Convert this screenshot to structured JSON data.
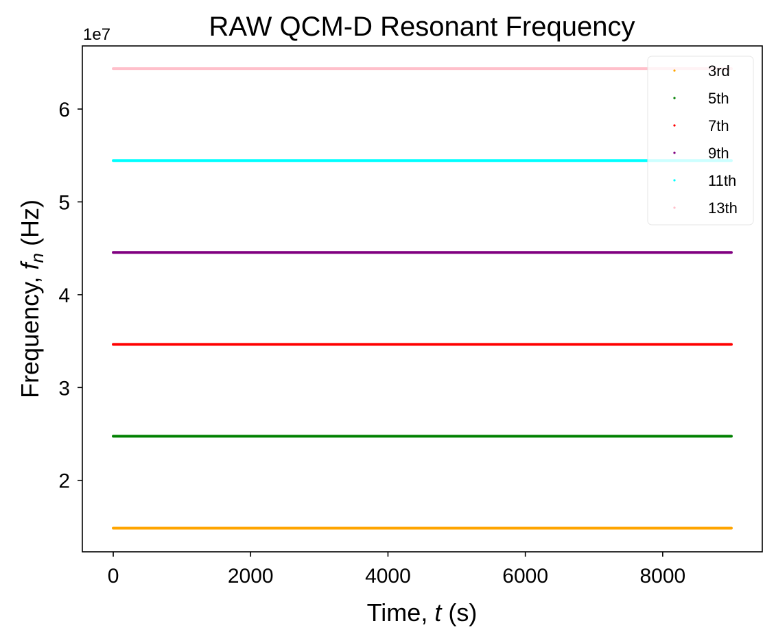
{
  "chart_data": {
    "type": "scatter",
    "title": "RAW QCM-D Resonant Frequency",
    "xlabel": {
      "prefix": "Time, ",
      "symbol": "t",
      "suffix": " (s)"
    },
    "ylabel": {
      "prefix": "Frequency, ",
      "symbol": "f",
      "sub": "n",
      "suffix": " (Hz)"
    },
    "y_offset_label": "1e7",
    "xlim": [
      -450,
      9450
    ],
    "ylim": [
      12300000.0,
      66800000.0
    ],
    "x_ticks": [
      0,
      2000,
      4000,
      6000,
      8000
    ],
    "x_tick_labels": [
      "0",
      "2000",
      "4000",
      "6000",
      "8000"
    ],
    "y_ticks": [
      20000000.0,
      30000000.0,
      40000000.0,
      50000000.0,
      60000000.0
    ],
    "y_tick_labels": [
      "2",
      "3",
      "4",
      "5",
      "6"
    ],
    "x_range": [
      0,
      9000
    ],
    "grid": false,
    "legend_position": "top-right",
    "series": [
      {
        "name": "3rd",
        "color": "#FFA500",
        "x": [
          0,
          9000
        ],
        "y": [
          14850000,
          14850000
        ]
      },
      {
        "name": "5th",
        "color": "#008000",
        "x": [
          0,
          9000
        ],
        "y": [
          24750000,
          24750000
        ]
      },
      {
        "name": "7th",
        "color": "#FF0000",
        "x": [
          0,
          9000
        ],
        "y": [
          34650000,
          34650000
        ]
      },
      {
        "name": "9th",
        "color": "#800080",
        "x": [
          0,
          9000
        ],
        "y": [
          44550000,
          44550000
        ]
      },
      {
        "name": "11th",
        "color": "#00FFFF",
        "x": [
          0,
          9000
        ],
        "y": [
          54450000,
          54450000
        ]
      },
      {
        "name": "13th",
        "color": "#FFC0CB",
        "x": [
          0,
          9000
        ],
        "y": [
          64350000,
          64350000
        ]
      }
    ]
  }
}
